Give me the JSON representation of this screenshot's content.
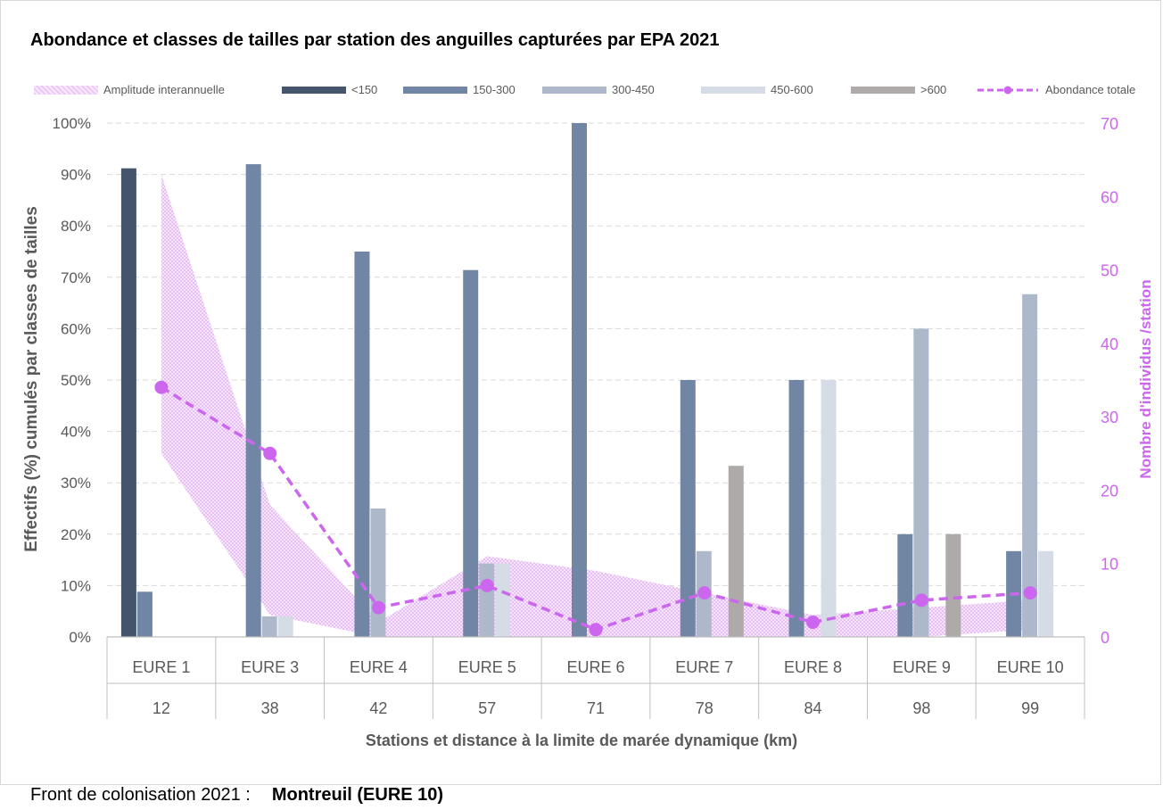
{
  "chart_data": {
    "type": "bar",
    "title": "Abondance et classes de tailles par station des anguilles capturées par EPA 2021",
    "xlabel": "Stations et distance à la limite de marée dynamique (km)",
    "ylabel": "Effectifs (%) cumulés par classes de tailles",
    "y2label": "Nombre d'individus /station",
    "ylim": [
      0,
      100
    ],
    "y2lim": [
      0,
      70
    ],
    "y_ticks": [
      "0%",
      "10%",
      "20%",
      "30%",
      "40%",
      "50%",
      "60%",
      "70%",
      "80%",
      "90%",
      "100%"
    ],
    "y2_ticks": [
      "0",
      "10",
      "20",
      "30",
      "40",
      "50",
      "60",
      "70"
    ],
    "grid": true,
    "legend_position": "top",
    "categories": [
      "EURE 1",
      "EURE 3",
      "EURE 4",
      "EURE 5",
      "EURE 6",
      "EURE 7",
      "EURE 8",
      "EURE 9",
      "EURE 10"
    ],
    "distances": [
      "12",
      "38",
      "42",
      "57",
      "71",
      "78",
      "84",
      "98",
      "99"
    ],
    "series": [
      {
        "name": "<150",
        "color": "#44546a",
        "values": [
          91.2,
          0,
          0,
          0,
          0,
          0,
          0,
          0,
          0
        ]
      },
      {
        "name": "150-300",
        "color": "#7186a4",
        "values": [
          8.8,
          92,
          75,
          71.4,
          100,
          50,
          50,
          20,
          16.7
        ]
      },
      {
        "name": "300-450",
        "color": "#adb9ca",
        "values": [
          0,
          4,
          25,
          14.3,
          0,
          16.7,
          0,
          60,
          66.7
        ]
      },
      {
        "name": "450-600",
        "color": "#d6dce5",
        "values": [
          0,
          4,
          0,
          14.3,
          0,
          0,
          50,
          0,
          16.7
        ]
      },
      {
        "name": ">600",
        "color": "#aeaaaa",
        "values": [
          0,
          0,
          0,
          0,
          0,
          33.3,
          0,
          20,
          0
        ]
      }
    ],
    "line": {
      "name": "Abondance totale",
      "color": "#cc66ee",
      "axis": "right",
      "values": [
        34,
        25,
        4,
        7,
        1,
        6,
        2,
        5,
        6
      ]
    },
    "band": {
      "name": "Amplitude interannuelle",
      "color": "#e9bbf5",
      "axis": "right",
      "upper": [
        63,
        18,
        2,
        11,
        9,
        6,
        3,
        4,
        5
      ],
      "lower": [
        25,
        3,
        0,
        0,
        0,
        0,
        0,
        0,
        1
      ]
    }
  },
  "footer": {
    "label": "Front de colonisation 2021 :",
    "value": "Montreuil (EURE 10)"
  }
}
